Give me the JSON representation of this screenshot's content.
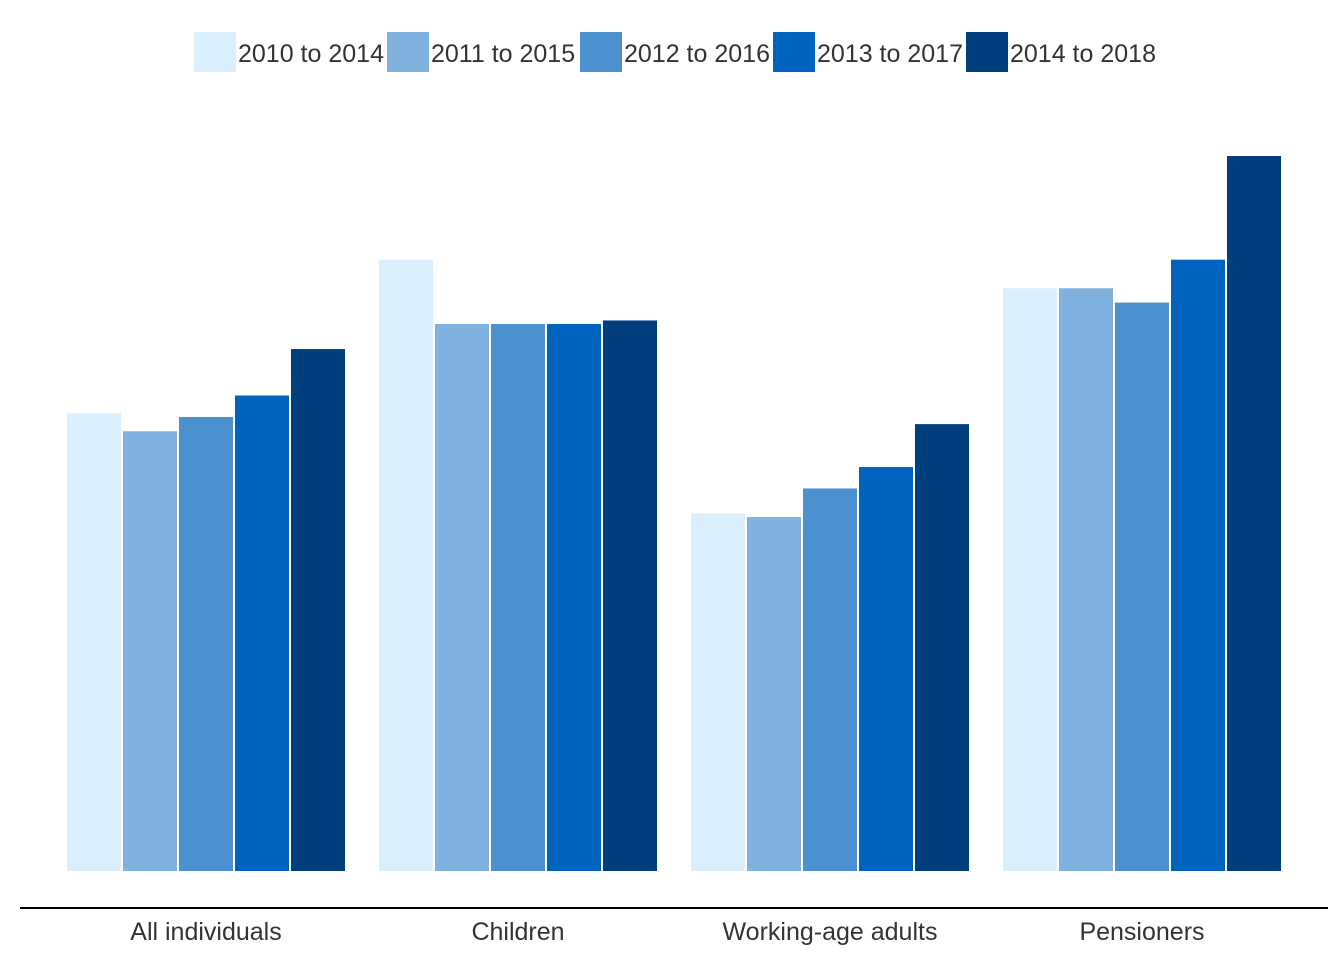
{
  "chart_data": {
    "type": "bar",
    "title": "",
    "xlabel": "",
    "ylabel": "",
    "ylim": [
      0,
      100
    ],
    "grid": false,
    "legend_position": "top",
    "categories": [
      "All individuals",
      "Children",
      "Working-age adults",
      "Pensioners"
    ],
    "series": [
      {
        "name": "2010 to 2014",
        "color": "#daeefc",
        "values": [
          64,
          85.5,
          50,
          81.5
        ]
      },
      {
        "name": "2011 to 2015",
        "color": "#80b1df",
        "values": [
          61.5,
          76.5,
          49.5,
          81.5
        ]
      },
      {
        "name": "2012 to 2016",
        "color": "#4c91cf",
        "values": [
          63.5,
          76.5,
          53.5,
          79.5
        ]
      },
      {
        "name": "2013 to 2017",
        "color": "#0064be",
        "values": [
          66.5,
          76.5,
          56.5,
          85.5
        ]
      },
      {
        "name": "2014 to 2018",
        "color": "#003f7d",
        "values": [
          73,
          77,
          62.5,
          100
        ]
      }
    ]
  }
}
